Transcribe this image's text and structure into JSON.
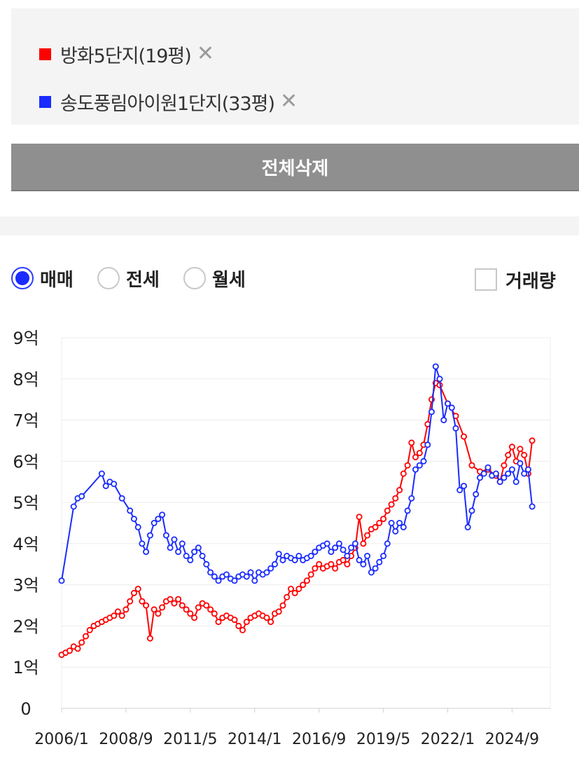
{
  "legend": {
    "items": [
      {
        "label": "방화5단지(19평)",
        "color": "#ff0000",
        "remove": "✕"
      },
      {
        "label": "송도풍림아이원1단지(33평)",
        "color": "#1a2cff",
        "remove": "✕"
      }
    ]
  },
  "delete_all_label": "전체삭제",
  "tabs": {
    "options": [
      {
        "label": "매매",
        "selected": true
      },
      {
        "label": "전세",
        "selected": false
      },
      {
        "label": "월세",
        "selected": false
      }
    ]
  },
  "volume_toggle": {
    "label": "거래량",
    "checked": false
  },
  "chart_data": {
    "type": "line",
    "xlim": [
      "2006-01",
      "2026-04"
    ],
    "ylim": [
      0,
      9
    ],
    "y_ticks": [
      {
        "value": 0,
        "label": "0"
      },
      {
        "value": 1,
        "label": "1억"
      },
      {
        "value": 2,
        "label": "2억"
      },
      {
        "value": 3,
        "label": "3억"
      },
      {
        "value": 4,
        "label": "4억"
      },
      {
        "value": 5,
        "label": "5억"
      },
      {
        "value": 6,
        "label": "6억"
      },
      {
        "value": 7,
        "label": "7억"
      },
      {
        "value": 8,
        "label": "8억"
      },
      {
        "value": 9,
        "label": "9억"
      }
    ],
    "x_ticks": [
      {
        "value": "2006-01",
        "label": "2006/1"
      },
      {
        "value": "2008-09",
        "label": "2008/9"
      },
      {
        "value": "2011-05",
        "label": "2011/5"
      },
      {
        "value": "2014-01",
        "label": "2014/1"
      },
      {
        "value": "2016-09",
        "label": "2016/9"
      },
      {
        "value": "2019-05",
        "label": "2019/5"
      },
      {
        "value": "2022-01",
        "label": "2022/1"
      },
      {
        "value": "2024-09",
        "label": "2024/9"
      }
    ],
    "grid": "horizontal",
    "series": [
      {
        "name": "방화5단지(19평)",
        "color": "#ff0000",
        "points": [
          [
            "2006-01",
            1.3
          ],
          [
            "2006-03",
            1.35
          ],
          [
            "2006-05",
            1.4
          ],
          [
            "2006-07",
            1.5
          ],
          [
            "2006-09",
            1.45
          ],
          [
            "2006-11",
            1.6
          ],
          [
            "2007-01",
            1.75
          ],
          [
            "2007-03",
            1.9
          ],
          [
            "2007-05",
            2.0
          ],
          [
            "2007-07",
            2.05
          ],
          [
            "2007-09",
            2.1
          ],
          [
            "2007-11",
            2.15
          ],
          [
            "2008-01",
            2.2
          ],
          [
            "2008-03",
            2.25
          ],
          [
            "2008-05",
            2.35
          ],
          [
            "2008-07",
            2.25
          ],
          [
            "2008-09",
            2.4
          ],
          [
            "2008-11",
            2.6
          ],
          [
            "2009-01",
            2.8
          ],
          [
            "2009-03",
            2.9
          ],
          [
            "2009-05",
            2.6
          ],
          [
            "2009-07",
            2.5
          ],
          [
            "2009-09",
            1.7
          ],
          [
            "2009-11",
            2.4
          ],
          [
            "2010-01",
            2.3
          ],
          [
            "2010-03",
            2.45
          ],
          [
            "2010-05",
            2.6
          ],
          [
            "2010-07",
            2.65
          ],
          [
            "2010-09",
            2.55
          ],
          [
            "2010-11",
            2.65
          ],
          [
            "2011-01",
            2.5
          ],
          [
            "2011-03",
            2.4
          ],
          [
            "2011-05",
            2.3
          ],
          [
            "2011-07",
            2.2
          ],
          [
            "2011-09",
            2.45
          ],
          [
            "2011-11",
            2.55
          ],
          [
            "2012-01",
            2.5
          ],
          [
            "2012-03",
            2.4
          ],
          [
            "2012-05",
            2.3
          ],
          [
            "2012-07",
            2.1
          ],
          [
            "2012-09",
            2.2
          ],
          [
            "2012-11",
            2.25
          ],
          [
            "2013-01",
            2.2
          ],
          [
            "2013-03",
            2.15
          ],
          [
            "2013-05",
            2.0
          ],
          [
            "2013-07",
            1.9
          ],
          [
            "2013-09",
            2.1
          ],
          [
            "2013-11",
            2.2
          ],
          [
            "2014-01",
            2.25
          ],
          [
            "2014-03",
            2.3
          ],
          [
            "2014-05",
            2.25
          ],
          [
            "2014-07",
            2.2
          ],
          [
            "2014-09",
            2.1
          ],
          [
            "2014-11",
            2.3
          ],
          [
            "2015-01",
            2.35
          ],
          [
            "2015-03",
            2.5
          ],
          [
            "2015-05",
            2.7
          ],
          [
            "2015-07",
            2.9
          ],
          [
            "2015-09",
            2.8
          ],
          [
            "2015-11",
            2.9
          ],
          [
            "2016-01",
            3.0
          ],
          [
            "2016-03",
            3.1
          ],
          [
            "2016-05",
            3.25
          ],
          [
            "2016-07",
            3.4
          ],
          [
            "2016-09",
            3.5
          ],
          [
            "2016-11",
            3.4
          ],
          [
            "2017-01",
            3.45
          ],
          [
            "2017-03",
            3.5
          ],
          [
            "2017-05",
            3.4
          ],
          [
            "2017-07",
            3.55
          ],
          [
            "2017-09",
            3.6
          ],
          [
            "2017-11",
            3.5
          ],
          [
            "2018-01",
            3.7
          ],
          [
            "2018-03",
            3.9
          ],
          [
            "2018-05",
            4.65
          ],
          [
            "2018-07",
            4.0
          ],
          [
            "2018-09",
            4.2
          ],
          [
            "2018-11",
            4.35
          ],
          [
            "2019-01",
            4.4
          ],
          [
            "2019-03",
            4.5
          ],
          [
            "2019-05",
            4.6
          ],
          [
            "2019-07",
            4.8
          ],
          [
            "2019-09",
            4.95
          ],
          [
            "2019-11",
            5.1
          ],
          [
            "2020-01",
            5.3
          ],
          [
            "2020-03",
            5.7
          ],
          [
            "2020-05",
            5.9
          ],
          [
            "2020-07",
            6.45
          ],
          [
            "2020-09",
            6.1
          ],
          [
            "2020-11",
            6.2
          ],
          [
            "2021-01",
            6.4
          ],
          [
            "2021-03",
            6.9
          ],
          [
            "2021-05",
            7.5
          ],
          [
            "2021-07",
            7.9
          ],
          [
            "2021-09",
            7.85
          ],
          [
            "2022-01",
            7.4
          ],
          [
            "2022-05",
            7.1
          ],
          [
            "2022-09",
            6.6
          ],
          [
            "2023-01",
            5.9
          ],
          [
            "2023-05",
            5.75
          ],
          [
            "2023-09",
            5.8
          ],
          [
            "2024-01",
            5.65
          ],
          [
            "2024-03",
            5.5
          ],
          [
            "2024-05",
            5.9
          ],
          [
            "2024-07",
            6.15
          ],
          [
            "2024-09",
            6.35
          ],
          [
            "2024-11",
            6.0
          ],
          [
            "2025-01",
            6.3
          ],
          [
            "2025-03",
            6.15
          ],
          [
            "2025-05",
            5.7
          ],
          [
            "2025-07",
            6.5
          ]
        ]
      },
      {
        "name": "송도풍림아이원1단지(33평)",
        "color": "#1a2cff",
        "points": [
          [
            "2006-01",
            3.1
          ],
          [
            "2006-07",
            4.9
          ],
          [
            "2006-09",
            5.1
          ],
          [
            "2006-11",
            5.15
          ],
          [
            "2007-09",
            5.7
          ],
          [
            "2007-11",
            5.4
          ],
          [
            "2008-01",
            5.5
          ],
          [
            "2008-03",
            5.45
          ],
          [
            "2008-07",
            5.1
          ],
          [
            "2008-11",
            4.8
          ],
          [
            "2009-01",
            4.6
          ],
          [
            "2009-03",
            4.4
          ],
          [
            "2009-05",
            4.0
          ],
          [
            "2009-07",
            3.8
          ],
          [
            "2009-09",
            4.2
          ],
          [
            "2009-11",
            4.5
          ],
          [
            "2010-01",
            4.6
          ],
          [
            "2010-03",
            4.7
          ],
          [
            "2010-05",
            4.2
          ],
          [
            "2010-07",
            3.9
          ],
          [
            "2010-09",
            4.1
          ],
          [
            "2010-11",
            3.8
          ],
          [
            "2011-01",
            4.0
          ],
          [
            "2011-03",
            3.7
          ],
          [
            "2011-05",
            3.6
          ],
          [
            "2011-07",
            3.8
          ],
          [
            "2011-09",
            3.9
          ],
          [
            "2011-11",
            3.7
          ],
          [
            "2012-01",
            3.5
          ],
          [
            "2012-03",
            3.3
          ],
          [
            "2012-05",
            3.2
          ],
          [
            "2012-07",
            3.1
          ],
          [
            "2012-09",
            3.2
          ],
          [
            "2012-11",
            3.25
          ],
          [
            "2013-01",
            3.15
          ],
          [
            "2013-03",
            3.1
          ],
          [
            "2013-05",
            3.2
          ],
          [
            "2013-07",
            3.25
          ],
          [
            "2013-09",
            3.2
          ],
          [
            "2013-11",
            3.3
          ],
          [
            "2014-01",
            3.1
          ],
          [
            "2014-03",
            3.3
          ],
          [
            "2014-05",
            3.25
          ],
          [
            "2014-07",
            3.3
          ],
          [
            "2014-09",
            3.4
          ],
          [
            "2014-11",
            3.5
          ],
          [
            "2015-01",
            3.75
          ],
          [
            "2015-03",
            3.6
          ],
          [
            "2015-05",
            3.7
          ],
          [
            "2015-07",
            3.65
          ],
          [
            "2015-09",
            3.6
          ],
          [
            "2015-11",
            3.7
          ],
          [
            "2016-01",
            3.6
          ],
          [
            "2016-03",
            3.65
          ],
          [
            "2016-05",
            3.7
          ],
          [
            "2016-07",
            3.8
          ],
          [
            "2016-09",
            3.9
          ],
          [
            "2016-11",
            3.95
          ],
          [
            "2017-01",
            4.0
          ],
          [
            "2017-03",
            3.8
          ],
          [
            "2017-05",
            3.9
          ],
          [
            "2017-07",
            4.0
          ],
          [
            "2017-09",
            3.85
          ],
          [
            "2017-11",
            3.7
          ],
          [
            "2018-01",
            3.9
          ],
          [
            "2018-03",
            4.0
          ],
          [
            "2018-05",
            3.6
          ],
          [
            "2018-07",
            3.5
          ],
          [
            "2018-09",
            3.7
          ],
          [
            "2018-11",
            3.3
          ],
          [
            "2019-01",
            3.4
          ],
          [
            "2019-03",
            3.55
          ],
          [
            "2019-05",
            3.7
          ],
          [
            "2019-07",
            4.0
          ],
          [
            "2019-09",
            4.5
          ],
          [
            "2019-11",
            4.3
          ],
          [
            "2020-01",
            4.5
          ],
          [
            "2020-03",
            4.4
          ],
          [
            "2020-05",
            4.8
          ],
          [
            "2020-07",
            5.1
          ],
          [
            "2020-09",
            5.8
          ],
          [
            "2020-11",
            5.9
          ],
          [
            "2021-01",
            6.0
          ],
          [
            "2021-03",
            6.4
          ],
          [
            "2021-05",
            7.2
          ],
          [
            "2021-07",
            8.3
          ],
          [
            "2021-09",
            8.0
          ],
          [
            "2021-11",
            7.0
          ],
          [
            "2022-01",
            7.4
          ],
          [
            "2022-03",
            7.3
          ],
          [
            "2022-05",
            6.8
          ],
          [
            "2022-07",
            5.3
          ],
          [
            "2022-09",
            5.4
          ],
          [
            "2022-11",
            4.4
          ],
          [
            "2023-01",
            4.8
          ],
          [
            "2023-03",
            5.2
          ],
          [
            "2023-05",
            5.6
          ],
          [
            "2023-07",
            5.7
          ],
          [
            "2023-09",
            5.85
          ],
          [
            "2023-11",
            5.65
          ],
          [
            "2024-01",
            5.7
          ],
          [
            "2024-03",
            5.5
          ],
          [
            "2024-05",
            5.6
          ],
          [
            "2024-07",
            5.7
          ],
          [
            "2024-09",
            5.8
          ],
          [
            "2024-11",
            5.5
          ],
          [
            "2025-01",
            5.95
          ],
          [
            "2025-03",
            5.7
          ],
          [
            "2025-05",
            5.8
          ],
          [
            "2025-07",
            4.9
          ]
        ]
      }
    ]
  }
}
